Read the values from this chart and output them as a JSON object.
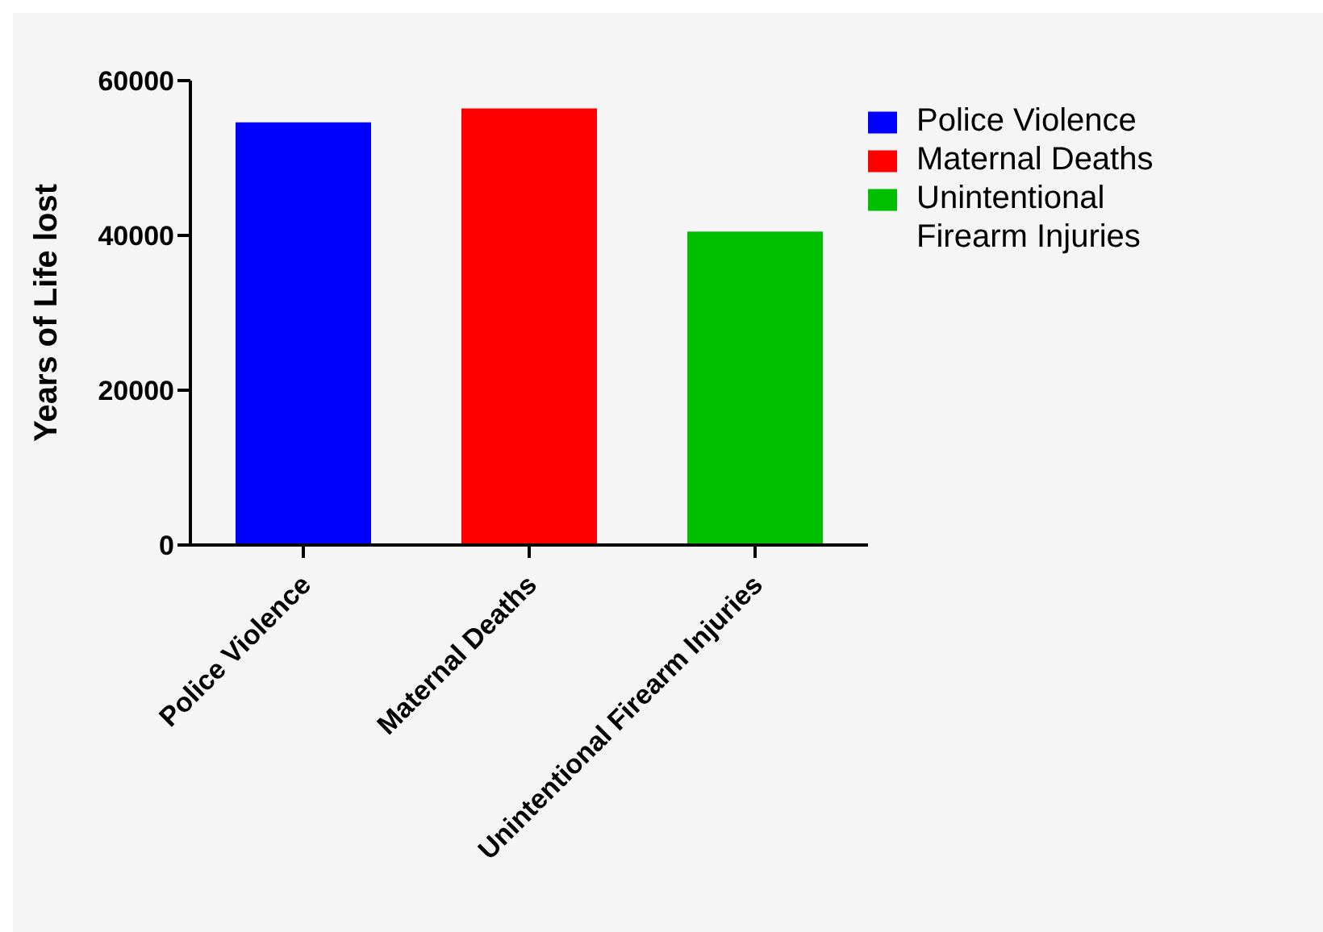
{
  "chart_data": {
    "type": "bar",
    "ylabel": "Years of  Life lost",
    "categories": [
      "Police Violence",
      "Maternal Deaths",
      "Unintentional Firearm Injuries"
    ],
    "series": [
      {
        "name": "Police Violence",
        "color": "#0000ff",
        "values": [
          54600,
          null,
          null
        ]
      },
      {
        "name": "Maternal Deaths",
        "color": "#ff0000",
        "values": [
          null,
          56400,
          null
        ]
      },
      {
        "name": "Unintentional Firearm Injuries",
        "color": "#00bf00",
        "values": [
          null,
          null,
          40500
        ]
      }
    ],
    "ylim": [
      0,
      60000
    ],
    "yticks": [
      0,
      20000,
      40000,
      60000
    ],
    "legend": "top right"
  }
}
